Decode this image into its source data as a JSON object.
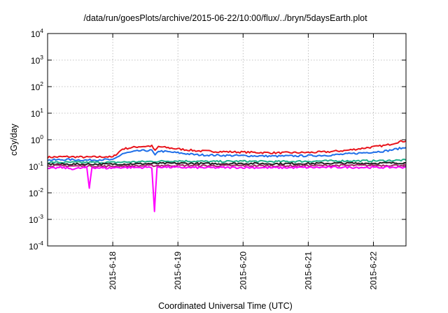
{
  "chart_data": {
    "type": "line",
    "title": "/data/run/goesPlots/archive/2015-06-22/10:00/flux/../bryn/5daysEarth.plot",
    "xlabel": "Coordinated Universal Time (UTC)",
    "ylabel": "cGy/day",
    "yscale": "log",
    "ylim": [
      0.0001,
      10000
    ],
    "yticks": [
      {
        "base": "10",
        "exp": "4"
      },
      {
        "base": "10",
        "exp": "3"
      },
      {
        "base": "10",
        "exp": "2"
      },
      {
        "base": "10",
        "exp": "1"
      },
      {
        "base": "10",
        "exp": "0"
      },
      {
        "base": "10",
        "exp": "-1"
      },
      {
        "base": "10",
        "exp": "-2"
      },
      {
        "base": "10",
        "exp": "-3"
      },
      {
        "base": "10",
        "exp": "-4"
      }
    ],
    "xlim_days": [
      0,
      5.5
    ],
    "xtick_positions_days": [
      1,
      2,
      3,
      4,
      5
    ],
    "xticks": [
      "2015-6-18",
      "2015-6-19",
      "2015-6-20",
      "2015-6-21",
      "2015-6-22"
    ],
    "grid": true,
    "series": [
      {
        "color": "#e8141c",
        "points": [
          [
            0,
            0.22
          ],
          [
            0.3,
            0.23
          ],
          [
            0.6,
            0.22
          ],
          [
            0.9,
            0.23
          ],
          [
            1.0,
            0.22
          ],
          [
            1.15,
            0.45
          ],
          [
            1.4,
            0.55
          ],
          [
            1.6,
            0.58
          ],
          [
            1.65,
            0.38
          ],
          [
            1.7,
            0.55
          ],
          [
            2.0,
            0.45
          ],
          [
            2.3,
            0.38
          ],
          [
            2.6,
            0.36
          ],
          [
            3.0,
            0.34
          ],
          [
            3.5,
            0.32
          ],
          [
            4.0,
            0.33
          ],
          [
            4.3,
            0.35
          ],
          [
            4.6,
            0.4
          ],
          [
            4.9,
            0.5
          ],
          [
            5.2,
            0.62
          ],
          [
            5.4,
            0.85
          ],
          [
            5.5,
            0.9
          ]
        ]
      },
      {
        "color": "#1f6fe8",
        "points": [
          [
            0,
            0.17
          ],
          [
            0.3,
            0.18
          ],
          [
            0.6,
            0.17
          ],
          [
            0.9,
            0.18
          ],
          [
            1.0,
            0.17
          ],
          [
            1.15,
            0.3
          ],
          [
            1.4,
            0.38
          ],
          [
            1.6,
            0.4
          ],
          [
            1.65,
            0.25
          ],
          [
            1.7,
            0.38
          ],
          [
            2.0,
            0.32
          ],
          [
            2.3,
            0.27
          ],
          [
            2.6,
            0.26
          ],
          [
            3.0,
            0.25
          ],
          [
            3.5,
            0.24
          ],
          [
            4.0,
            0.25
          ],
          [
            4.3,
            0.26
          ],
          [
            4.6,
            0.29
          ],
          [
            4.9,
            0.33
          ],
          [
            5.2,
            0.38
          ],
          [
            5.4,
            0.47
          ],
          [
            5.5,
            0.5
          ]
        ]
      },
      {
        "color": "#20b28a",
        "points": [
          [
            0,
            0.14
          ],
          [
            1.0,
            0.14
          ],
          [
            1.5,
            0.15
          ],
          [
            2.0,
            0.16
          ],
          [
            2.5,
            0.15
          ],
          [
            3.0,
            0.155
          ],
          [
            3.5,
            0.15
          ],
          [
            4.0,
            0.155
          ],
          [
            4.5,
            0.16
          ],
          [
            5.0,
            0.16
          ],
          [
            5.5,
            0.17
          ]
        ]
      },
      {
        "color": "#222222",
        "points": [
          [
            0,
            0.12
          ],
          [
            1.0,
            0.12
          ],
          [
            1.5,
            0.125
          ],
          [
            2.0,
            0.13
          ],
          [
            2.5,
            0.125
          ],
          [
            3.0,
            0.128
          ],
          [
            3.5,
            0.125
          ],
          [
            4.0,
            0.127
          ],
          [
            4.5,
            0.13
          ],
          [
            5.0,
            0.13
          ],
          [
            5.5,
            0.135
          ]
        ]
      },
      {
        "color": "#a8246e",
        "points": [
          [
            0,
            0.105
          ],
          [
            1.0,
            0.1
          ],
          [
            1.5,
            0.105
          ],
          [
            2.0,
            0.108
          ],
          [
            2.5,
            0.105
          ],
          [
            3.0,
            0.106
          ],
          [
            3.5,
            0.104
          ],
          [
            4.0,
            0.106
          ],
          [
            4.5,
            0.108
          ],
          [
            5.0,
            0.108
          ],
          [
            5.5,
            0.11
          ]
        ]
      },
      {
        "color": "#ff00ff",
        "points": [
          [
            0,
            0.08
          ],
          [
            0.2,
            0.09
          ],
          [
            0.4,
            0.08
          ],
          [
            0.6,
            0.09
          ],
          [
            0.64,
            0.015
          ],
          [
            0.68,
            0.09
          ],
          [
            0.9,
            0.085
          ],
          [
            1.1,
            0.09
          ],
          [
            1.4,
            0.09
          ],
          [
            1.6,
            0.092
          ],
          [
            1.64,
            0.002
          ],
          [
            1.68,
            0.095
          ],
          [
            2.0,
            0.09
          ],
          [
            2.5,
            0.088
          ],
          [
            3.0,
            0.09
          ],
          [
            3.5,
            0.088
          ],
          [
            4.0,
            0.09
          ],
          [
            4.5,
            0.092
          ],
          [
            5.0,
            0.09
          ],
          [
            5.5,
            0.092
          ]
        ]
      }
    ]
  }
}
